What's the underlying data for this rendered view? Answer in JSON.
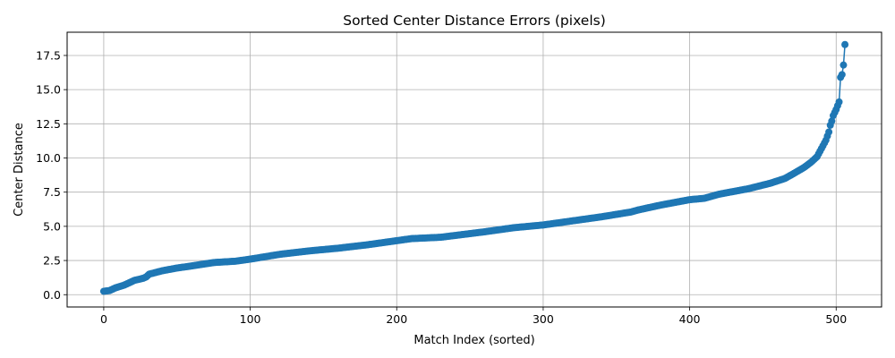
{
  "chart_data": {
    "type": "line",
    "title": "Sorted Center Distance Errors (pixels)",
    "xlabel": "Match Index (sorted)",
    "ylabel": "Center Distance",
    "xlim": [
      -25,
      531
    ],
    "ylim": [
      -0.9,
      19.2
    ],
    "xticks": [
      0,
      100,
      200,
      300,
      400,
      500
    ],
    "yticks": [
      0.0,
      2.5,
      5.0,
      7.5,
      10.0,
      12.5,
      15.0,
      17.5
    ],
    "xtick_labels": [
      "0",
      "100",
      "200",
      "300",
      "400",
      "500"
    ],
    "ytick_labels": [
      "0.0",
      "2.5",
      "5.0",
      "7.5",
      "10.0",
      "12.5",
      "15.0",
      "17.5"
    ],
    "grid": true,
    "marker": "circle",
    "color": "#1f77b4",
    "n_points": 507,
    "x_start": 0,
    "x_step": 1,
    "y_anchors": [
      [
        0,
        0.25
      ],
      [
        4,
        0.3
      ],
      [
        8,
        0.5
      ],
      [
        14,
        0.7
      ],
      [
        18,
        0.9
      ],
      [
        21,
        1.05
      ],
      [
        27,
        1.2
      ],
      [
        29,
        1.3
      ],
      [
        31,
        1.5
      ],
      [
        40,
        1.75
      ],
      [
        50,
        1.95
      ],
      [
        60,
        2.1
      ],
      [
        75,
        2.35
      ],
      [
        90,
        2.45
      ],
      [
        100,
        2.6
      ],
      [
        120,
        2.95
      ],
      [
        140,
        3.2
      ],
      [
        160,
        3.4
      ],
      [
        180,
        3.65
      ],
      [
        200,
        3.95
      ],
      [
        210,
        4.1
      ],
      [
        230,
        4.2
      ],
      [
        245,
        4.4
      ],
      [
        260,
        4.6
      ],
      [
        280,
        4.9
      ],
      [
        300,
        5.1
      ],
      [
        320,
        5.4
      ],
      [
        340,
        5.7
      ],
      [
        360,
        6.05
      ],
      [
        365,
        6.2
      ],
      [
        380,
        6.55
      ],
      [
        400,
        6.95
      ],
      [
        410,
        7.05
      ],
      [
        420,
        7.35
      ],
      [
        440,
        7.75
      ],
      [
        455,
        8.15
      ],
      [
        465,
        8.5
      ],
      [
        470,
        8.8
      ],
      [
        478,
        9.3
      ],
      [
        483,
        9.7
      ],
      [
        487,
        10.1
      ],
      [
        489,
        10.5
      ],
      [
        491,
        10.9
      ],
      [
        493,
        11.3
      ],
      [
        495,
        11.9
      ],
      [
        496,
        12.4
      ],
      [
        497,
        12.7
      ],
      [
        498,
        13.1
      ],
      [
        500,
        13.55
      ],
      [
        502,
        14.1
      ],
      [
        503,
        15.9
      ],
      [
        504,
        16.1
      ],
      [
        505,
        16.8
      ],
      [
        506,
        18.3
      ]
    ]
  }
}
